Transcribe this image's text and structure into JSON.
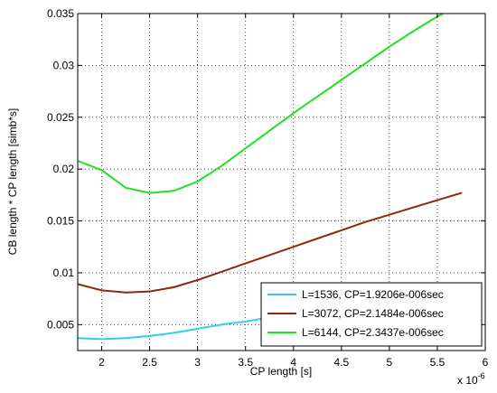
{
  "chart_data": {
    "type": "line",
    "xlabel": "CP length [s]",
    "ylabel": "CB length * CP length [simb*s]",
    "x_exponent_label": "x 10",
    "x_exponent_power": "-6",
    "xlim": [
      1.75,
      6.0
    ],
    "ylim": [
      0.0025,
      0.035
    ],
    "xticks": [
      2,
      2.5,
      3,
      3.5,
      4,
      4.5,
      5,
      5.5,
      6
    ],
    "xtick_labels": [
      "2",
      "2.5",
      "3",
      "3.5",
      "4",
      "4.5",
      "5",
      "5.5",
      "6"
    ],
    "yticks": [
      0.005,
      0.01,
      0.015,
      0.02,
      0.025,
      0.03,
      0.035
    ],
    "ytick_labels": [
      "0.005",
      "0.01",
      "0.015",
      "0.02",
      "0.025",
      "0.03",
      "0.035"
    ],
    "grid": true,
    "legend_position": "bottom-right",
    "series": [
      {
        "name": "L=1536, CP=1.9206e-006sec",
        "color": "#33ccee",
        "x": [
          1.75,
          2.0,
          2.25,
          2.5,
          2.75,
          3.0,
          3.25,
          3.5,
          3.75,
          4.0,
          4.25,
          4.5,
          4.75,
          5.0,
          5.25,
          5.5,
          5.75
        ],
        "y": [
          0.0037,
          0.0036,
          0.0037,
          0.0039,
          0.0042,
          0.0046,
          0.005,
          0.0053,
          0.0057,
          0.006,
          0.0064,
          0.0068,
          0.0072,
          0.0076,
          0.008,
          0.0084,
          0.0088
        ]
      },
      {
        "name": "L=3072, CP=2.1484e-006sec",
        "color": "#8b2a0a",
        "x": [
          1.75,
          2.0,
          2.25,
          2.5,
          2.75,
          3.0,
          3.25,
          3.5,
          3.75,
          4.0,
          4.25,
          4.5,
          4.75,
          5.0,
          5.25,
          5.5,
          5.75
        ],
        "y": [
          0.0089,
          0.0083,
          0.0081,
          0.0082,
          0.0086,
          0.0093,
          0.0101,
          0.0109,
          0.0117,
          0.0125,
          0.0133,
          0.0141,
          0.0149,
          0.0156,
          0.0163,
          0.017,
          0.0177
        ]
      },
      {
        "name": "L=6144, CP=2.3437e-006sec",
        "color": "#22e022",
        "x": [
          1.75,
          2.0,
          2.25,
          2.5,
          2.75,
          3.0,
          3.25,
          3.5,
          3.75,
          4.0,
          4.25,
          4.5,
          4.75,
          5.0,
          5.25,
          5.5,
          5.75
        ],
        "y": [
          0.0208,
          0.0199,
          0.0182,
          0.0177,
          0.0179,
          0.0188,
          0.0203,
          0.022,
          0.0237,
          0.0254,
          0.027,
          0.0286,
          0.0302,
          0.0318,
          0.0333,
          0.0347,
          0.036
        ]
      }
    ]
  }
}
